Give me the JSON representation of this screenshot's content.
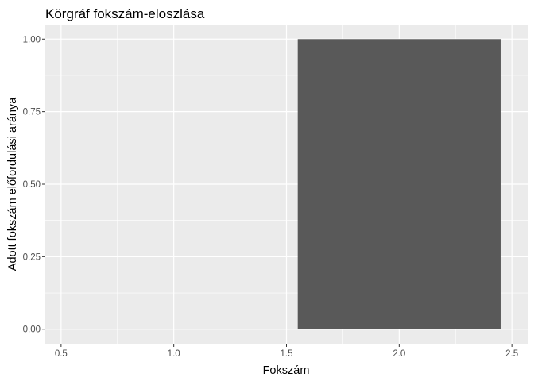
{
  "chart_data": {
    "type": "bar",
    "title": "Körgráf fokszám-eloszlása",
    "xlabel": "Fokszám",
    "ylabel": "Adott fokszám előfordulási aránya",
    "xlim": [
      0.5,
      2.5
    ],
    "ylim": [
      0,
      1
    ],
    "x_ticks": [
      "0.5",
      "1.0",
      "1.5",
      "2.0",
      "2.5"
    ],
    "x_tick_values": [
      0.5,
      1.0,
      1.5,
      2.0,
      2.5
    ],
    "y_ticks": [
      "0.00",
      "0.25",
      "0.50",
      "0.75",
      "1.00"
    ],
    "y_tick_values": [
      0,
      0.25,
      0.5,
      0.75,
      1.0
    ],
    "bars": [
      {
        "x": 2,
        "value": 1.0
      }
    ],
    "bar_width": 0.9,
    "grid": true,
    "legend": "none",
    "colors": {
      "panel_background": "#EBEBEB",
      "grid_major": "#FFFFFF",
      "bar_fill": "#595959",
      "tick_label": "#4D4D4D",
      "tick_mark": "#333333"
    }
  }
}
